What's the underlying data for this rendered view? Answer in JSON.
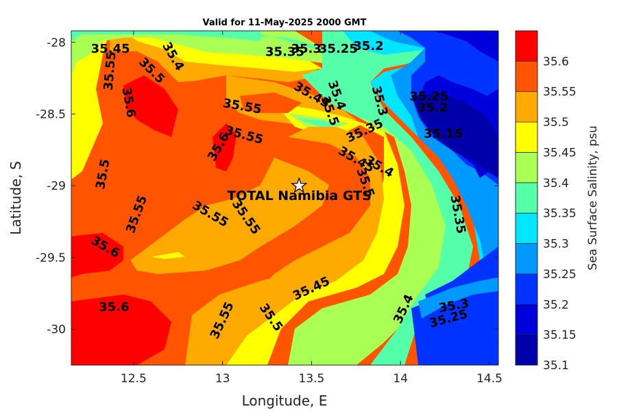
{
  "chart_data": {
    "type": "contour",
    "title": "Valid for 11-May-2025 2000 GMT",
    "xlabel": "Longitude, E",
    "ylabel": "Latitude, S",
    "xlim": [
      12.15,
      14.55
    ],
    "ylim": [
      -30.25,
      -27.92
    ],
    "xticks": [
      "12.5",
      "13",
      "13.5",
      "14",
      "14.5"
    ],
    "xtick_values": [
      12.5,
      13,
      13.5,
      14,
      14.5
    ],
    "yticks": [
      "-28",
      "-28.5",
      "-29",
      "-29.5",
      "-30"
    ],
    "ytick_values": [
      -28,
      -28.5,
      -29,
      -29.5,
      -30
    ],
    "colorbar": {
      "label": "Sea Surface Salinity, psu",
      "ticks": [
        "35.1",
        "35.15",
        "35.2",
        "35.25",
        "35.3",
        "35.35",
        "35.4",
        "35.45",
        "35.5",
        "35.55",
        "35.6"
      ],
      "levels": [
        35.1,
        35.15,
        35.2,
        35.25,
        35.3,
        35.35,
        35.4,
        35.45,
        35.5,
        35.55,
        35.6,
        35.65
      ],
      "colors": [
        "#0000aa",
        "#0000dd",
        "#0033ff",
        "#0099ff",
        "#00e6ff",
        "#55ffaa",
        "#aaff55",
        "#ffff00",
        "#ffaa00",
        "#ff5500",
        "#ff0000"
      ]
    },
    "site": {
      "name": "TOTAL Namibia GTS",
      "lon": 13.43,
      "lat": -29.0
    },
    "contour_labels": [
      {
        "text": "35.45",
        "lon": 12.37,
        "lat": -28.05,
        "rot": 0
      },
      {
        "text": "35.4",
        "lon": 12.72,
        "lat": -28.1,
        "rot": 60
      },
      {
        "text": "35.5",
        "lon": 12.6,
        "lat": -28.2,
        "rot": 45
      },
      {
        "text": "35.55",
        "lon": 12.37,
        "lat": -28.2,
        "rot": -85
      },
      {
        "text": "35.6",
        "lon": 12.47,
        "lat": -28.42,
        "rot": 80
      },
      {
        "text": "35.35",
        "lon": 13.35,
        "lat": -28.07,
        "rot": 0
      },
      {
        "text": "35.3",
        "lon": 13.47,
        "lat": -28.05,
        "rot": 0
      },
      {
        "text": "35.25",
        "lon": 13.65,
        "lat": -28.05,
        "rot": 0
      },
      {
        "text": "35.2",
        "lon": 13.82,
        "lat": -28.03,
        "rot": 0
      },
      {
        "text": "35.55",
        "lon": 13.11,
        "lat": -28.45,
        "rot": 10
      },
      {
        "text": "35.45",
        "lon": 13.5,
        "lat": -28.37,
        "rot": 30
      },
      {
        "text": "35.4",
        "lon": 13.64,
        "lat": -28.37,
        "rot": 70
      },
      {
        "text": "35.5",
        "lon": 13.6,
        "lat": -28.48,
        "rot": 70
      },
      {
        "text": "35.3",
        "lon": 13.88,
        "lat": -28.41,
        "rot": 75
      },
      {
        "text": "35.35",
        "lon": 13.8,
        "lat": -28.62,
        "rot": -25
      },
      {
        "text": "35.25",
        "lon": 14.16,
        "lat": -28.38,
        "rot": 0
      },
      {
        "text": "35.2",
        "lon": 14.18,
        "lat": -28.46,
        "rot": 0
      },
      {
        "text": "35.15",
        "lon": 14.24,
        "lat": -28.64,
        "rot": 0
      },
      {
        "text": "35.55",
        "lon": 13.12,
        "lat": -28.65,
        "rot": 15
      },
      {
        "text": "35.6",
        "lon": 12.98,
        "lat": -28.73,
        "rot": -60
      },
      {
        "text": "35.5",
        "lon": 12.33,
        "lat": -28.92,
        "rot": -80
      },
      {
        "text": "35.45",
        "lon": 13.75,
        "lat": -28.82,
        "rot": 30
      },
      {
        "text": "35.4",
        "lon": 13.88,
        "lat": -28.87,
        "rot": 30
      },
      {
        "text": "35.5",
        "lon": 13.8,
        "lat": -28.98,
        "rot": 70
      },
      {
        "text": "35.55",
        "lon": 12.52,
        "lat": -29.2,
        "rot": -70
      },
      {
        "text": "35.55",
        "lon": 12.93,
        "lat": -29.2,
        "rot": 30
      },
      {
        "text": "35.55",
        "lon": 13.13,
        "lat": -29.22,
        "rot": 55
      },
      {
        "text": "35.35",
        "lon": 14.32,
        "lat": -29.2,
        "rot": 80
      },
      {
        "text": "35.6",
        "lon": 12.34,
        "lat": -29.43,
        "rot": 30
      },
      {
        "text": "35.45",
        "lon": 13.5,
        "lat": -29.72,
        "rot": -25
      },
      {
        "text": "35.6",
        "lon": 12.39,
        "lat": -29.85,
        "rot": 0
      },
      {
        "text": "35.55",
        "lon": 13.0,
        "lat": -29.94,
        "rot": -65
      },
      {
        "text": "35.5",
        "lon": 13.27,
        "lat": -29.92,
        "rot": 55
      },
      {
        "text": "35.4",
        "lon": 14.02,
        "lat": -29.86,
        "rot": -65
      },
      {
        "text": "35.3",
        "lon": 14.3,
        "lat": -29.84,
        "rot": -10
      },
      {
        "text": "35.25",
        "lon": 14.27,
        "lat": -29.93,
        "rot": -15
      }
    ]
  }
}
